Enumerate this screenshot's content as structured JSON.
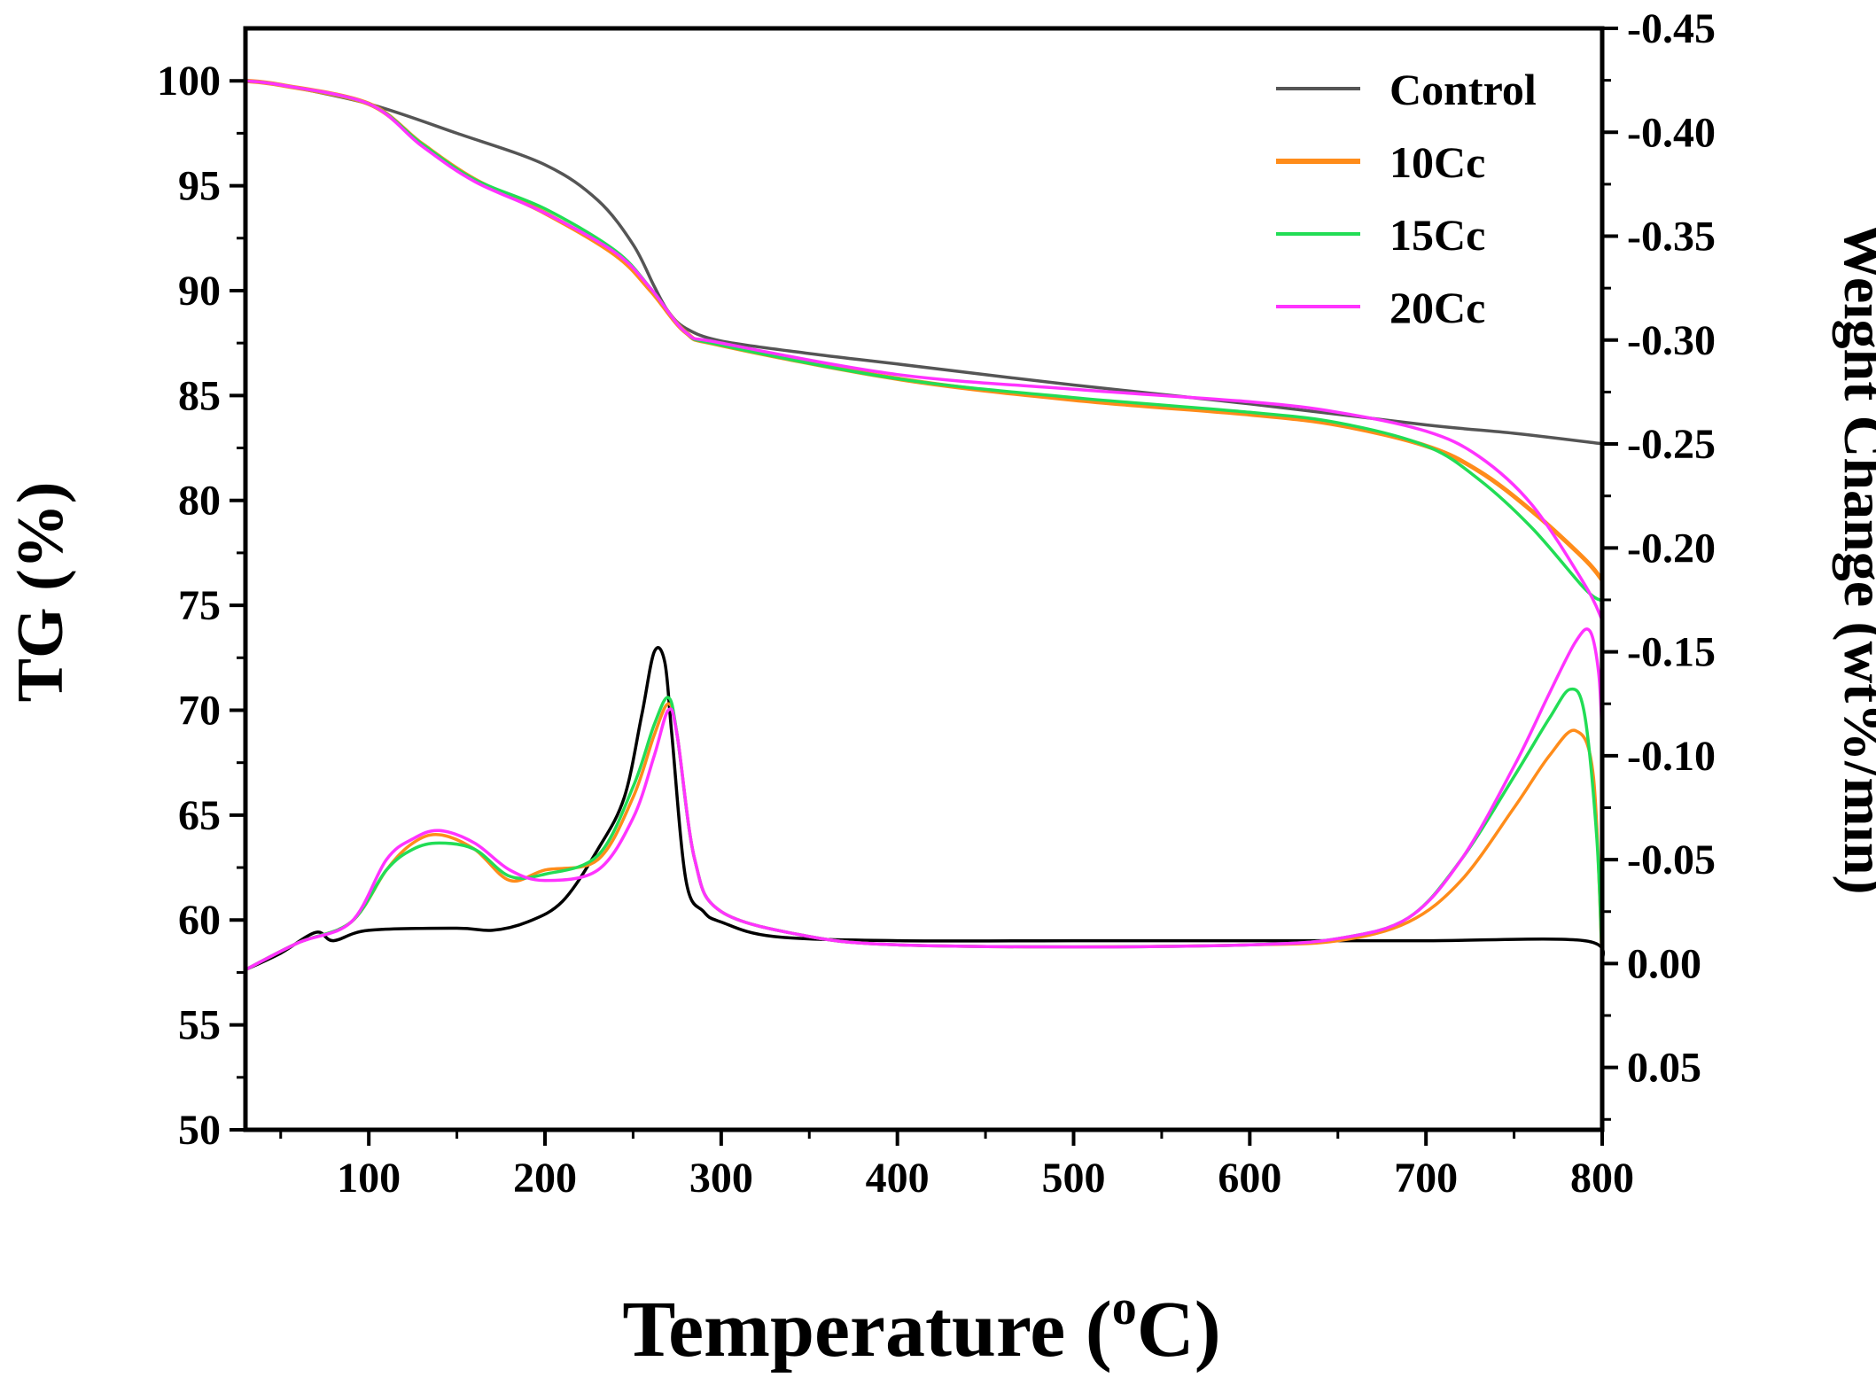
{
  "chart_data": {
    "type": "line",
    "title": "",
    "xlabel": "Temperature",
    "xlabel_unit": "(oC)",
    "ylabel": "TG (%)",
    "y2label": "Weight Change (wt%/min)",
    "xlim": [
      30,
      800
    ],
    "ylim": [
      50,
      102.5
    ],
    "y2lim": [
      0.08,
      -0.45
    ],
    "xticks": [
      100,
      200,
      300,
      400,
      500,
      600,
      700,
      800
    ],
    "yticks": [
      50,
      55,
      60,
      65,
      70,
      75,
      80,
      85,
      90,
      95,
      100
    ],
    "y2ticks": [
      "0.05",
      "0.00",
      "-0.05",
      "-0.10",
      "-0.15",
      "-0.20",
      "-0.25",
      "-0.30",
      "-0.35",
      "-0.40",
      "-0.45"
    ],
    "y2tick_values": [
      0.05,
      0.0,
      -0.05,
      -0.1,
      -0.15,
      -0.2,
      -0.25,
      -0.3,
      -0.35,
      -0.4,
      -0.45
    ],
    "legend_position": "top-right",
    "colors": {
      "Control": "#555555",
      "Control_dtg": "#000000",
      "10Cc": "#ff8c1a",
      "15Cc": "#22dd55",
      "20Cc": "#ff33ff"
    },
    "tg_series": [
      {
        "name": "Control",
        "axis": "left",
        "x": [
          30,
          50,
          100,
          150,
          200,
          230,
          250,
          262,
          270,
          280,
          300,
          350,
          400,
          500,
          600,
          700,
          750,
          800
        ],
        "y": [
          100,
          99.8,
          98.9,
          97.5,
          96.0,
          94.3,
          92.2,
          90.2,
          89.0,
          88.2,
          87.6,
          87.0,
          86.5,
          85.5,
          84.6,
          83.6,
          83.2,
          82.7
        ]
      },
      {
        "name": "10Cc",
        "axis": "left",
        "x": [
          30,
          50,
          100,
          130,
          160,
          200,
          240,
          260,
          280,
          300,
          400,
          500,
          600,
          650,
          700,
          730,
          760,
          790,
          800
        ],
        "y": [
          100,
          99.8,
          98.9,
          97.0,
          95.3,
          93.7,
          91.7,
          90.0,
          88.0,
          87.4,
          85.8,
          84.8,
          84.1,
          83.6,
          82.6,
          81.4,
          79.5,
          77.2,
          76.2
        ]
      },
      {
        "name": "15Cc",
        "axis": "left",
        "x": [
          30,
          50,
          100,
          130,
          160,
          200,
          240,
          260,
          280,
          300,
          400,
          500,
          600,
          650,
          700,
          730,
          760,
          790,
          800
        ],
        "y": [
          100,
          99.8,
          98.9,
          97.0,
          95.3,
          93.9,
          91.9,
          90.1,
          88.0,
          87.4,
          85.8,
          84.9,
          84.2,
          83.7,
          82.6,
          81.0,
          78.7,
          75.8,
          75.2
        ]
      },
      {
        "name": "20Cc",
        "axis": "left",
        "x": [
          30,
          50,
          100,
          130,
          160,
          200,
          240,
          260,
          280,
          300,
          400,
          500,
          600,
          650,
          700,
          730,
          760,
          790,
          800
        ],
        "y": [
          100,
          99.8,
          98.9,
          96.9,
          95.2,
          93.7,
          91.8,
          90.1,
          88.0,
          87.5,
          86.0,
          85.3,
          84.7,
          84.2,
          83.3,
          82.1,
          79.8,
          76.0,
          74.3
        ]
      }
    ],
    "dtg_series": [
      {
        "name": "Control",
        "axis": "right",
        "x": [
          30,
          50,
          70,
          80,
          100,
          150,
          170,
          190,
          210,
          230,
          245,
          255,
          262,
          268,
          272,
          280,
          290,
          300,
          330,
          400,
          500,
          600,
          700,
          790,
          800
        ],
        "y": [
          0.003,
          -0.005,
          -0.015,
          -0.011,
          -0.016,
          -0.017,
          -0.016,
          -0.02,
          -0.03,
          -0.055,
          -0.08,
          -0.12,
          -0.15,
          -0.145,
          -0.11,
          -0.04,
          -0.025,
          -0.02,
          -0.013,
          -0.011,
          -0.011,
          -0.011,
          -0.011,
          -0.011,
          0.0
        ]
      },
      {
        "name": "10Cc",
        "axis": "right",
        "x": [
          30,
          60,
          90,
          110,
          125,
          140,
          160,
          180,
          200,
          230,
          250,
          262,
          270,
          275,
          285,
          300,
          350,
          400,
          500,
          600,
          650,
          690,
          720,
          750,
          770,
          785,
          795,
          800
        ],
        "y": [
          0.003,
          -0.01,
          -0.02,
          -0.045,
          -0.058,
          -0.062,
          -0.055,
          -0.04,
          -0.045,
          -0.05,
          -0.08,
          -0.11,
          -0.125,
          -0.11,
          -0.05,
          -0.025,
          -0.013,
          -0.009,
          -0.008,
          -0.009,
          -0.011,
          -0.02,
          -0.04,
          -0.075,
          -0.1,
          -0.112,
          -0.09,
          0.0
        ]
      },
      {
        "name": "15Cc",
        "axis": "right",
        "x": [
          30,
          60,
          90,
          110,
          125,
          140,
          160,
          180,
          200,
          230,
          250,
          262,
          270,
          275,
          285,
          300,
          350,
          400,
          500,
          600,
          650,
          690,
          720,
          750,
          770,
          782,
          790,
          797,
          800
        ],
        "y": [
          0.003,
          -0.01,
          -0.02,
          -0.045,
          -0.055,
          -0.058,
          -0.055,
          -0.042,
          -0.043,
          -0.052,
          -0.085,
          -0.115,
          -0.128,
          -0.11,
          -0.05,
          -0.025,
          -0.013,
          -0.009,
          -0.008,
          -0.009,
          -0.012,
          -0.022,
          -0.05,
          -0.09,
          -0.118,
          -0.132,
          -0.12,
          -0.06,
          0.0
        ]
      },
      {
        "name": "20Cc",
        "axis": "right",
        "x": [
          30,
          60,
          90,
          110,
          125,
          140,
          160,
          180,
          200,
          230,
          250,
          262,
          270,
          275,
          285,
          300,
          350,
          400,
          500,
          600,
          650,
          690,
          720,
          750,
          770,
          785,
          793,
          798,
          800
        ],
        "y": [
          0.003,
          -0.01,
          -0.02,
          -0.05,
          -0.06,
          -0.064,
          -0.058,
          -0.045,
          -0.04,
          -0.045,
          -0.07,
          -0.1,
          -0.122,
          -0.11,
          -0.05,
          -0.025,
          -0.013,
          -0.009,
          -0.008,
          -0.009,
          -0.012,
          -0.022,
          -0.05,
          -0.095,
          -0.13,
          -0.155,
          -0.16,
          -0.14,
          -0.11
        ]
      }
    ]
  }
}
